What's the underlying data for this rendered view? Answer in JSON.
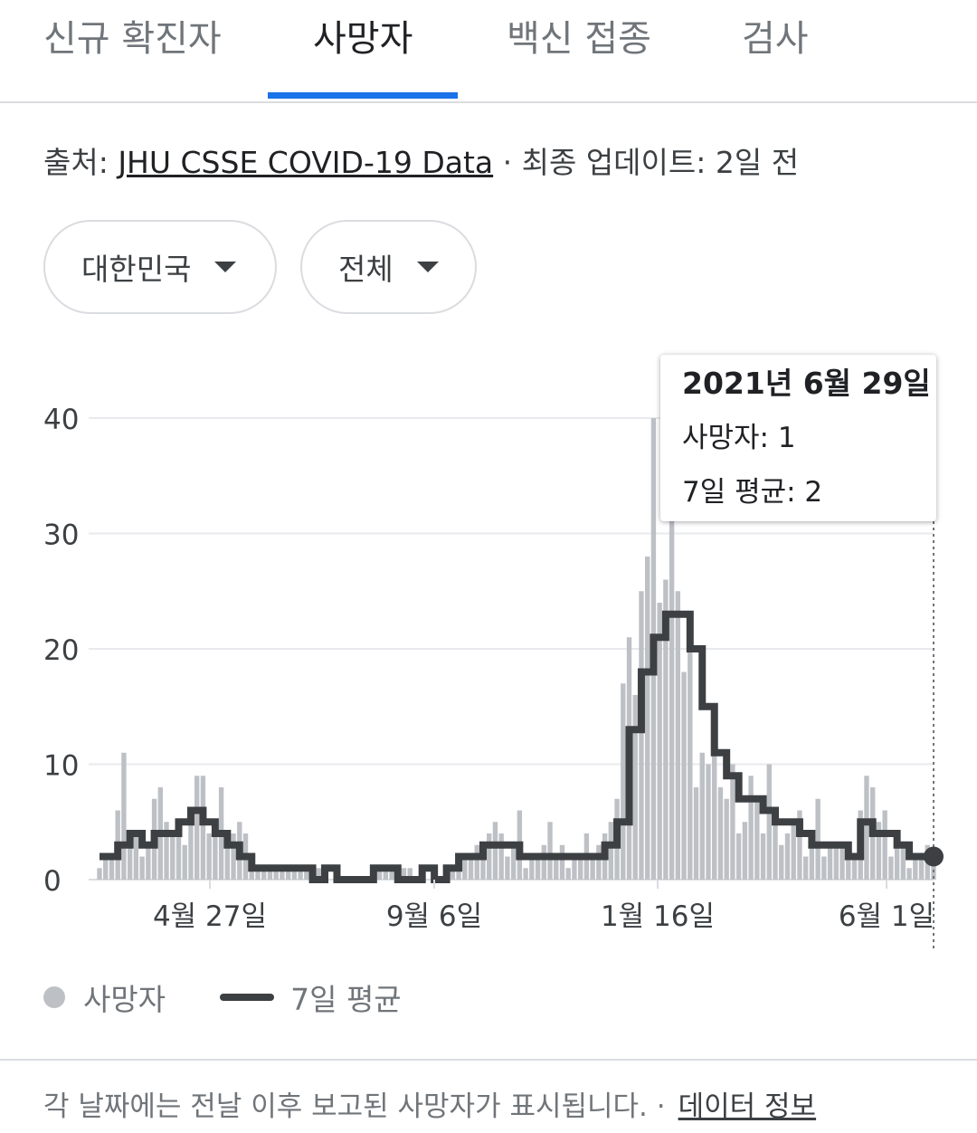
{
  "tabs": [
    {
      "label": "신규 확진자"
    },
    {
      "label": "사망자"
    },
    {
      "label": "백신 접종"
    },
    {
      "label": "검사"
    }
  ],
  "source": {
    "prefix": "출처: ",
    "link": "JHU CSSE COVID-19 Data",
    "suffix": " · 최종 업데이트: 2일 전"
  },
  "filters": {
    "region": "대한민국",
    "scope": "전체"
  },
  "tooltip": {
    "date": "2021년 6월 29일",
    "deaths": "사망자: 1",
    "avg": "7일 평균: 2"
  },
  "legend": {
    "deaths": "사망자",
    "avg": "7일 평균"
  },
  "footer": {
    "text": "각 날짜에는 전날 이후 보고된 사망자가 표시됩니다. ·",
    "link": "데이터 정보"
  },
  "colors": {
    "bars": "#bdc1c6",
    "line": "#3c4043",
    "accent": "#1a73e8",
    "grid": "#e8eaed"
  },
  "chart_data": {
    "type": "bar",
    "y_ticks": [
      0,
      10,
      20,
      30,
      40
    ],
    "x_ticks": [
      "4월 27일",
      "9월 6일",
      "1월 16일",
      "6월 1일"
    ],
    "ylim": [
      0,
      40
    ],
    "series": [
      {
        "name": "사망자",
        "kind": "bar"
      },
      {
        "name": "7일 평균",
        "kind": "line"
      }
    ],
    "deaths_segments": [
      [
        0,
        2
      ],
      [
        3,
        4
      ],
      [
        6,
        3
      ],
      [
        9,
        6
      ],
      [
        12,
        4
      ],
      [
        15,
        7
      ],
      [
        18,
        5
      ],
      [
        21,
        4
      ],
      [
        24,
        3
      ],
      [
        26,
        1
      ],
      [
        34,
        1
      ],
      [
        38,
        0
      ],
      [
        46,
        1
      ],
      [
        52,
        0
      ],
      [
        58,
        1
      ],
      [
        60,
        2
      ],
      [
        63,
        4
      ],
      [
        66,
        3
      ],
      [
        69,
        2
      ],
      [
        72,
        2
      ],
      [
        76,
        2
      ],
      [
        80,
        3
      ],
      [
        84,
        8
      ],
      [
        86,
        15
      ],
      [
        88,
        21
      ],
      [
        90,
        22
      ],
      [
        92,
        26
      ],
      [
        94,
        24
      ],
      [
        96,
        18
      ],
      [
        98,
        13
      ],
      [
        100,
        9
      ],
      [
        102,
        7
      ],
      [
        104,
        6
      ],
      [
        107,
        5
      ],
      [
        110,
        5
      ],
      [
        113,
        4
      ],
      [
        116,
        3
      ],
      [
        119,
        3
      ],
      [
        122,
        2
      ],
      [
        125,
        5
      ],
      [
        127,
        4
      ],
      [
        130,
        3
      ],
      [
        132,
        2
      ],
      [
        135,
        2
      ]
    ],
    "deaths_spikes": [
      [
        4,
        11
      ],
      [
        16,
        9
      ],
      [
        17,
        9
      ],
      [
        20,
        8
      ],
      [
        69,
        6
      ],
      [
        74,
        5
      ],
      [
        91,
        40
      ],
      [
        94,
        35
      ],
      [
        93,
        26
      ],
      [
        95,
        25
      ],
      [
        89,
        25
      ],
      [
        92,
        24
      ],
      [
        126,
        9
      ],
      [
        127,
        8
      ],
      [
        118,
        7
      ],
      [
        110,
        10
      ],
      [
        102,
        8
      ],
      [
        104,
        10
      ],
      [
        107,
        9
      ]
    ],
    "avg_segments": [
      [
        0,
        2
      ],
      [
        2,
        2
      ],
      [
        3,
        3
      ],
      [
        5,
        4
      ],
      [
        7,
        3
      ],
      [
        9,
        4
      ],
      [
        11,
        4
      ],
      [
        13,
        5
      ],
      [
        15,
        6
      ],
      [
        17,
        5
      ],
      [
        19,
        4
      ],
      [
        21,
        3
      ],
      [
        23,
        2
      ],
      [
        25,
        1
      ],
      [
        27,
        1
      ],
      [
        29,
        1
      ],
      [
        31,
        1
      ],
      [
        33,
        1
      ],
      [
        35,
        0
      ],
      [
        37,
        1
      ],
      [
        39,
        0
      ],
      [
        41,
        0
      ],
      [
        43,
        0
      ],
      [
        45,
        1
      ],
      [
        47,
        1
      ],
      [
        49,
        0
      ],
      [
        51,
        0
      ],
      [
        53,
        1
      ],
      [
        55,
        0
      ],
      [
        57,
        1
      ],
      [
        59,
        2
      ],
      [
        61,
        2
      ],
      [
        63,
        3
      ],
      [
        65,
        3
      ],
      [
        67,
        3
      ],
      [
        69,
        2
      ],
      [
        71,
        2
      ],
      [
        73,
        2
      ],
      [
        75,
        2
      ],
      [
        77,
        2
      ],
      [
        79,
        2
      ],
      [
        81,
        2
      ],
      [
        83,
        3
      ],
      [
        85,
        5
      ],
      [
        87,
        13
      ],
      [
        89,
        18
      ],
      [
        91,
        21
      ],
      [
        93,
        23
      ],
      [
        95,
        23
      ],
      [
        97,
        20
      ],
      [
        99,
        15
      ],
      [
        101,
        11
      ],
      [
        103,
        9
      ],
      [
        105,
        7
      ],
      [
        107,
        7
      ],
      [
        109,
        6
      ],
      [
        111,
        5
      ],
      [
        113,
        5
      ],
      [
        115,
        4
      ],
      [
        117,
        3
      ],
      [
        119,
        3
      ],
      [
        121,
        3
      ],
      [
        123,
        2
      ],
      [
        125,
        5
      ],
      [
        127,
        4
      ],
      [
        129,
        4
      ],
      [
        131,
        3
      ],
      [
        133,
        2
      ],
      [
        135,
        2
      ],
      [
        137,
        2
      ]
    ],
    "last_point": 2
  }
}
